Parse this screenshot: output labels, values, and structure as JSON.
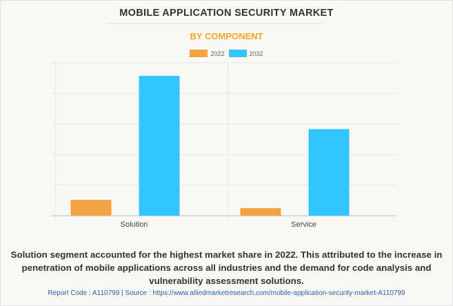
{
  "title": "MOBILE APPLICATION SECURITY MARKET",
  "subtitle": "BY COMPONENT",
  "summary": "Solution segment accounted for the highest market share in 2022. This attributed to the increase in penetration of mobile applications across all industries and the demand for code analysis and vulnerability assessment solutions.",
  "footer": "Report Code : A110799  |  Source : https://www.alliedmarketresearch.com/mobile-application-security-market-A110799",
  "chart_data": {
    "type": "bar",
    "title": "MOBILE APPLICATION SECURITY MARKET",
    "subtitle": "BY COMPONENT",
    "categories": [
      "Solution",
      "Service"
    ],
    "series": [
      {
        "name": "2022",
        "color": "#f2a444",
        "values": [
          0.52,
          0.25
        ]
      },
      {
        "name": "2032",
        "color": "#33c5fd",
        "values": [
          4.57,
          2.83
        ]
      }
    ],
    "xlabel": "",
    "ylabel": "",
    "ylim": [
      0,
      5
    ],
    "y_ticks_labeled": false,
    "grid": true,
    "legend": "top-center"
  }
}
